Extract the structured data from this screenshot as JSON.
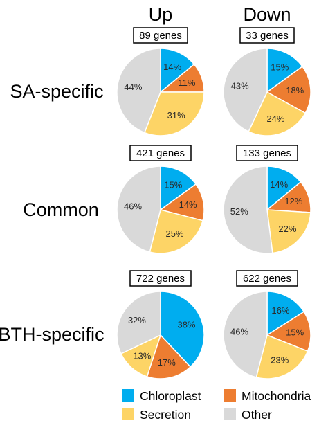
{
  "chart_data": {
    "type": "pie",
    "column_headers": [
      "Up",
      "Down"
    ],
    "row_labels": [
      "SA-specific",
      "Common",
      "BTH-specific"
    ],
    "categories": [
      "Chloroplast",
      "Mitochondria",
      "Secretion",
      "Other"
    ],
    "colors": {
      "Chloroplast": "#00adef",
      "Mitochondria": "#ed7d31",
      "Secretion": "#fdd466",
      "Other": "#d9d9d9"
    },
    "legend": {
      "position": "bottom"
    },
    "pies": [
      {
        "row": "SA-specific",
        "column": "Up",
        "count_label": "89 genes",
        "values": [
          14,
          11,
          31,
          44
        ],
        "labels": [
          "14%",
          "11%",
          "31%",
          "44%"
        ]
      },
      {
        "row": "SA-specific",
        "column": "Down",
        "count_label": "33 genes",
        "values": [
          15,
          18,
          24,
          43
        ],
        "labels": [
          "15%",
          "18%",
          "24%",
          "43%"
        ]
      },
      {
        "row": "Common",
        "column": "Up",
        "count_label": "421 genes",
        "values": [
          15,
          14,
          25,
          46
        ],
        "labels": [
          "15%",
          "14%",
          "25%",
          "46%"
        ]
      },
      {
        "row": "Common",
        "column": "Down",
        "count_label": "133 genes",
        "values": [
          14,
          12,
          22,
          52
        ],
        "labels": [
          "14%",
          "12%",
          "22%",
          "52%"
        ]
      },
      {
        "row": "BTH-specific",
        "column": "Up",
        "count_label": "722 genes",
        "values": [
          38,
          17,
          13,
          32
        ],
        "labels": [
          "38%",
          "17%",
          "13%",
          "32%"
        ]
      },
      {
        "row": "BTH-specific",
        "column": "Down",
        "count_label": "622 genes",
        "values": [
          16,
          15,
          23,
          46
        ],
        "labels": [
          "16%",
          "15%",
          "23%",
          "46%"
        ]
      }
    ]
  }
}
